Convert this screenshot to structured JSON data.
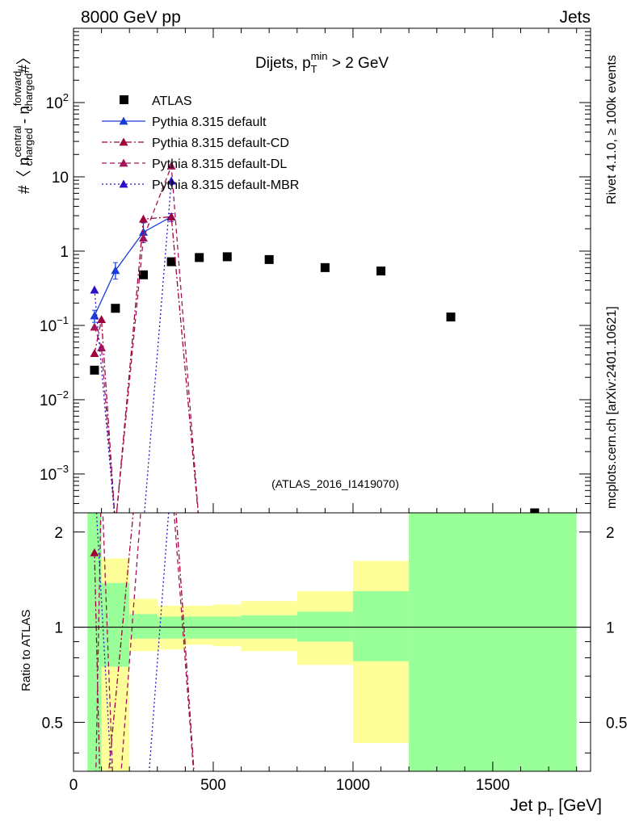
{
  "header": {
    "left": "8000 GeV pp",
    "right": "Jets"
  },
  "side_labels": {
    "rivet": "Rivet 4.1.0, ≥ 100k events",
    "mcplots": "mcplots.cern.ch [arXiv:2401.10621]"
  },
  "colors": {
    "data": "#000000",
    "default": "#1a3cd6",
    "cd": "#a0003c",
    "dl": "#a0145a",
    "mbr": "#2a10c8",
    "band_green": "#99ff99",
    "band_yellow": "#ffff99"
  },
  "chart_data": {
    "type": "scatter",
    "title": "Dijets, p_T^min > 2 GeV",
    "title_parts": {
      "main": "Dijets, p",
      "sub": "T",
      "sup": "min",
      "rest": " > 2 GeV"
    },
    "analysis_id": "(ATLAS_2016_I1419070)",
    "ylabel_main": "#〈 n central charged - n forward charged #〉",
    "ylabel_parts": {
      "prefix": "#〈 n",
      "sup1": "central",
      "sub1": "charged",
      "mid": " - n",
      "sup2": "forward",
      "sub2": "charged",
      "suffix": "#〉"
    },
    "ylabel_ratio": "Ratio to ATLAS",
    "xlabel_parts": {
      "main": "Jet p",
      "sub": "T",
      "rest": " [GeV]"
    },
    "xlim": [
      0,
      1850
    ],
    "ylim_main": [
      0.0003,
      1000
    ],
    "ylim_ratio": [
      0.35,
      2.3
    ],
    "x_ticks": [
      "0",
      "500",
      "1000",
      "1500"
    ],
    "y_ticks_main": [
      {
        "value": 100,
        "base": "10",
        "exp": "2"
      },
      {
        "value": 10,
        "base": "10",
        "exp": ""
      },
      {
        "value": 1,
        "base": "1",
        "exp": ""
      },
      {
        "value": 0.1,
        "base": "10",
        "exp": "−1"
      },
      {
        "value": 0.01,
        "base": "10",
        "exp": "−2"
      },
      {
        "value": 0.001,
        "base": "10",
        "exp": "−3"
      }
    ],
    "y_ticks_ratio": [
      {
        "value": 0.5,
        "label": "0.5"
      },
      {
        "value": 1,
        "label": "1"
      },
      {
        "value": 2,
        "label": "2"
      }
    ],
    "bins": [
      {
        "lo": 50,
        "hi": 100,
        "green": [
          0.3,
          2.5
        ],
        "yellow": [
          0.3,
          2.5
        ]
      },
      {
        "lo": 100,
        "hi": 200,
        "green": [
          0.75,
          1.38
        ],
        "yellow": [
          0.3,
          1.65
        ]
      },
      {
        "lo": 200,
        "hi": 300,
        "green": [
          0.92,
          1.1
        ],
        "yellow": [
          0.84,
          1.23
        ]
      },
      {
        "lo": 300,
        "hi": 400,
        "green": [
          0.92,
          1.08
        ],
        "yellow": [
          0.85,
          1.17
        ]
      },
      {
        "lo": 400,
        "hi": 500,
        "green": [
          0.92,
          1.08
        ],
        "yellow": [
          0.88,
          1.17
        ]
      },
      {
        "lo": 500,
        "hi": 600,
        "green": [
          0.92,
          1.08
        ],
        "yellow": [
          0.87,
          1.18
        ]
      },
      {
        "lo": 600,
        "hi": 800,
        "green": [
          0.92,
          1.09
        ],
        "yellow": [
          0.84,
          1.21
        ]
      },
      {
        "lo": 800,
        "hi": 1000,
        "green": [
          0.9,
          1.12
        ],
        "yellow": [
          0.76,
          1.3
        ]
      },
      {
        "lo": 1000,
        "hi": 1200,
        "green": [
          0.78,
          1.3
        ],
        "yellow": [
          0.43,
          1.62
        ]
      },
      {
        "lo": 1200,
        "hi": 1800,
        "green": [
          0.3,
          2.5
        ],
        "yellow": [
          0.3,
          2.5
        ]
      }
    ],
    "series": [
      {
        "name": "ATLAS",
        "key": "data",
        "marker": "square",
        "x": [
          75,
          150,
          250,
          350,
          450,
          550,
          700,
          900,
          1100,
          1350,
          1650
        ],
        "y": [
          0.025,
          0.17,
          0.48,
          0.72,
          0.82,
          0.84,
          0.77,
          0.6,
          0.54,
          0.13,
          0.0003
        ]
      },
      {
        "name": "Pythia 8.315 default",
        "key": "default",
        "dash": "",
        "marker": "triangle",
        "x": [
          75,
          150,
          250,
          350
        ],
        "y": [
          0.135,
          0.55,
          1.8,
          2.9
        ],
        "err": [
          [
            0.11,
            0.16
          ],
          [
            0.42,
            0.7
          ],
          [
            1.3,
            2.4
          ],
          [
            2.5,
            3.2
          ]
        ],
        "ratio": [
          null,
          null,
          null,
          null
        ]
      },
      {
        "name": "Pythia 8.315 default-CD",
        "key": "cd",
        "dash": "7 3 2 3",
        "marker": "triangle",
        "x": [
          75,
          100,
          150,
          250,
          350,
          450
        ],
        "y": [
          0.042,
          0.12,
          0.0002,
          2.7,
          2.9,
          0.0002
        ],
        "ratio": [
          1.72,
          0.2,
          null,
          5,
          3.8,
          0.2
        ]
      },
      {
        "name": "Pythia 8.315 default-DL",
        "key": "dl",
        "dash": "6 4",
        "marker": "triangle",
        "x": [
          75,
          100,
          150,
          250,
          350,
          450
        ],
        "y": [
          0.095,
          0.05,
          0.0002,
          1.5,
          14.0,
          0.0002
        ],
        "ratio": [
          0.2,
          3,
          0.2,
          3,
          3,
          0.2
        ]
      },
      {
        "name": "Pythia 8.315 default-MBR",
        "key": "mbr",
        "dash": "2 3",
        "marker": "triangle",
        "x": [
          75,
          150,
          250,
          350
        ],
        "y": [
          0.3,
          0.0002,
          0.0002,
          8.8
        ],
        "ratio": [
          3,
          0.2,
          0.2,
          3
        ]
      }
    ],
    "legend_position": "top-left"
  }
}
